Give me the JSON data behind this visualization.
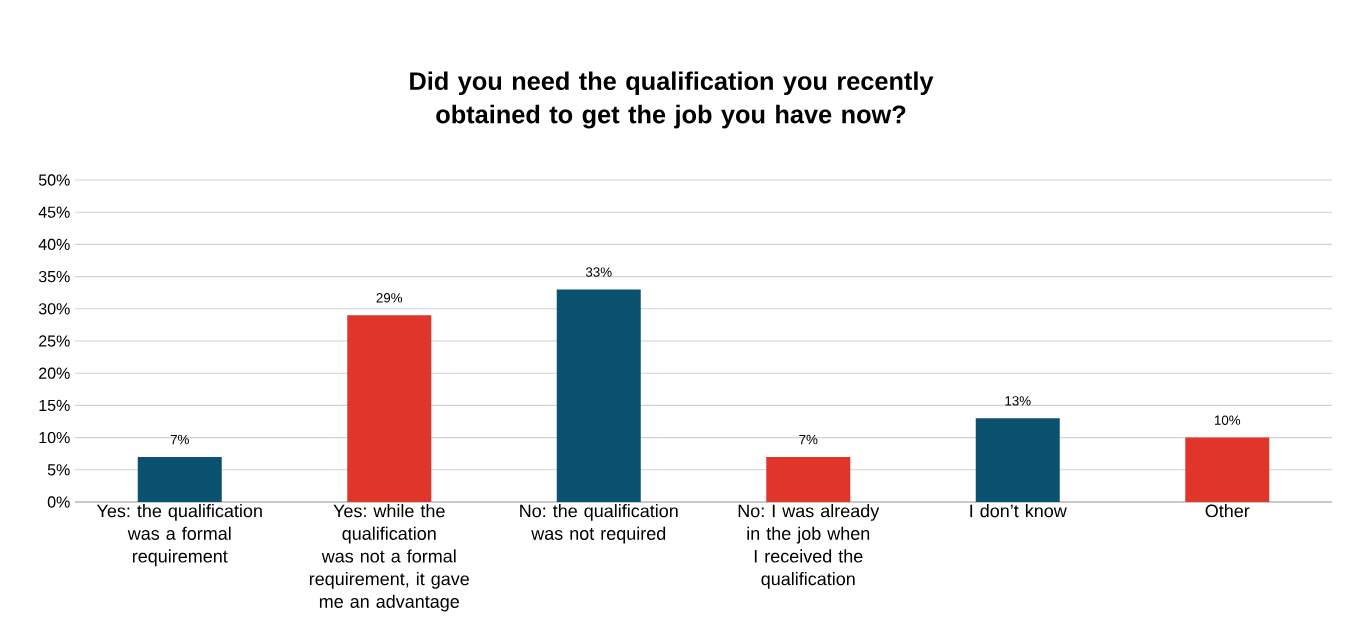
{
  "chart_data": {
    "type": "bar",
    "title": "Did you need the qualification you recently obtained to get the job you have now?",
    "categories": [
      "Yes: the qualification was a formal requirement",
      "Yes: while the qualification was not a formal requirement, it gave me an advantage",
      "No: the qualification was not required",
      "No: I was already in the job when I received the qualification",
      "I don’t know",
      "Other"
    ],
    "values": [
      7,
      29,
      33,
      7,
      13,
      10
    ],
    "colors": [
      "#0b5170",
      "#e0352b",
      "#0b5170",
      "#e0352b",
      "#0b5170",
      "#e0352b"
    ],
    "ylim": [
      0,
      50
    ],
    "yticks": [
      {
        "value": 0,
        "label": "0%"
      },
      {
        "value": 5,
        "label": "5%"
      },
      {
        "value": 10,
        "label": "10%"
      },
      {
        "value": 15,
        "label": "15%"
      },
      {
        "value": 20,
        "label": "20%"
      },
      {
        "value": 25,
        "label": "25%"
      },
      {
        "value": 30,
        "label": "30%"
      },
      {
        "value": 35,
        "label": "35%"
      },
      {
        "value": 40,
        "label": "40%"
      },
      {
        "value": 45,
        "label": "45%"
      },
      {
        "value": 50,
        "label": "50%"
      }
    ],
    "value_labels": [
      "7%",
      "29%",
      "33%",
      "7%",
      "13%",
      "10%"
    ],
    "grid": "y"
  }
}
